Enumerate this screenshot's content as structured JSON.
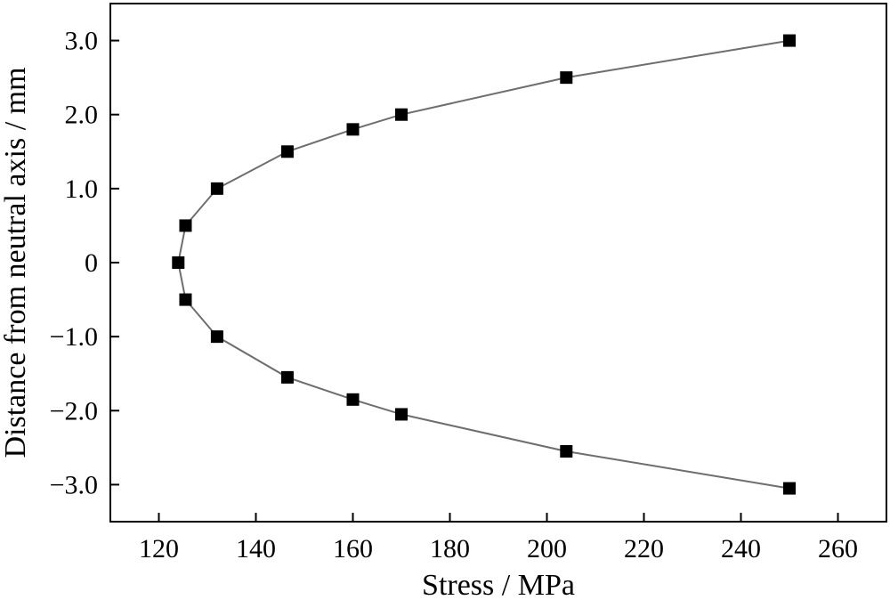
{
  "chart_data": {
    "type": "line",
    "title": "",
    "xlabel": "Stress / MPa",
    "ylabel": "Distance from neutral axis / mm",
    "xlim": [
      110,
      270
    ],
    "ylim": [
      -3.5,
      3.5
    ],
    "xticks": [
      120,
      140,
      160,
      180,
      200,
      220,
      240,
      260
    ],
    "xtick_labels": [
      "120",
      "140",
      "160",
      "180",
      "200",
      "220",
      "240",
      "260"
    ],
    "yticks": [
      3.0,
      2.0,
      1.0,
      0,
      -1.0,
      -2.0,
      -3.0
    ],
    "ytick_labels": [
      "3.0",
      "2.0",
      "1.0",
      "0",
      "−1.0",
      "−2.0",
      "−3.0"
    ],
    "grid": false,
    "series": [
      {
        "marker": "square",
        "line_color": "#6e6e6e",
        "marker_color": "#000000",
        "points": [
          {
            "x": 250,
            "y": 3.0
          },
          {
            "x": 204,
            "y": 2.5
          },
          {
            "x": 170,
            "y": 2.0
          },
          {
            "x": 160,
            "y": 1.8
          },
          {
            "x": 146.5,
            "y": 1.5
          },
          {
            "x": 132,
            "y": 1.0
          },
          {
            "x": 125.5,
            "y": 0.5
          },
          {
            "x": 124,
            "y": 0
          },
          {
            "x": 125.5,
            "y": -0.5
          },
          {
            "x": 132,
            "y": -1.0
          },
          {
            "x": 146.5,
            "y": -1.55
          },
          {
            "x": 160,
            "y": -1.85
          },
          {
            "x": 170,
            "y": -2.05
          },
          {
            "x": 204,
            "y": -2.55
          },
          {
            "x": 250,
            "y": -3.05
          }
        ]
      }
    ]
  }
}
